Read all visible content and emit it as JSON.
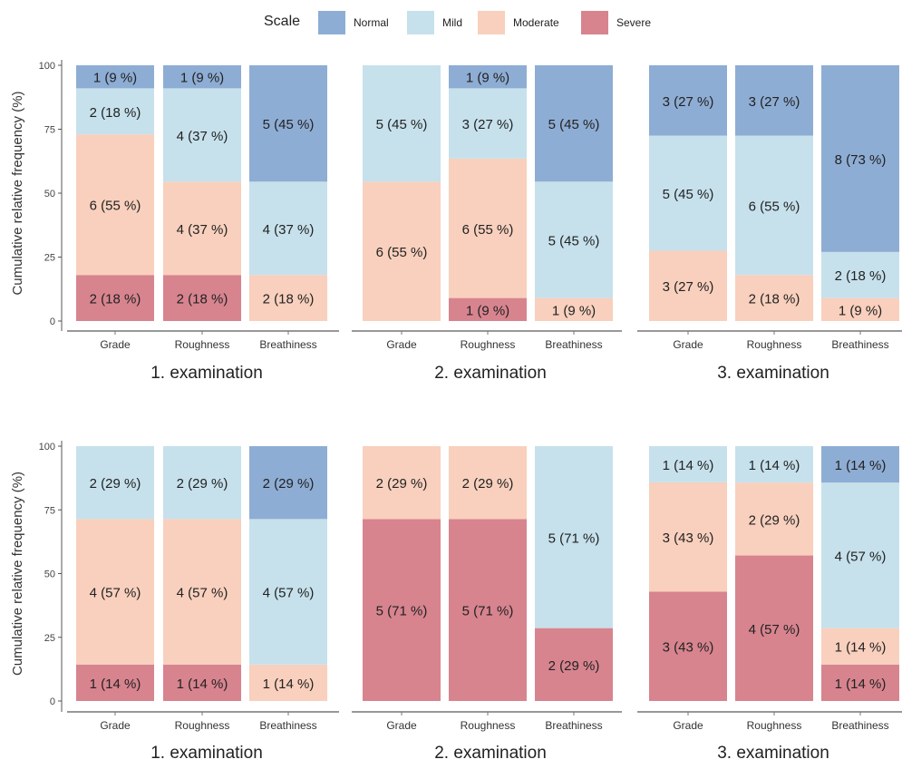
{
  "legend": {
    "title": "Scale",
    "items": [
      {
        "label": "Normal",
        "color": "#8eadd4"
      },
      {
        "label": "Mild",
        "color": "#c6e1ec"
      },
      {
        "label": "Moderate",
        "color": "#f8d0bd"
      },
      {
        "label": "Severe",
        "color": "#d7848f"
      }
    ]
  },
  "chart_data": {
    "type": "bar",
    "stacked": true,
    "ylabel": "Cumulative relative frequency (%)",
    "ylim": [
      0,
      100
    ],
    "yticks": [
      0,
      25,
      50,
      75,
      100
    ],
    "categories": [
      "Grade",
      "Roughness",
      "Breathiness"
    ],
    "stack_order_bottom_to_top": [
      "Severe",
      "Moderate",
      "Mild",
      "Normal"
    ],
    "rows": [
      {
        "panels": [
          {
            "title": "1. examination",
            "bars": [
              {
                "category": "Grade",
                "segments": [
                  {
                    "level": "Severe",
                    "value": 18,
                    "label": "2 (18 %)"
                  },
                  {
                    "level": "Moderate",
                    "value": 55,
                    "label": "6 (55 %)"
                  },
                  {
                    "level": "Mild",
                    "value": 18,
                    "label": "2 (18 %)"
                  },
                  {
                    "level": "Normal",
                    "value": 9,
                    "label": "1 (9 %)"
                  }
                ]
              },
              {
                "category": "Roughness",
                "segments": [
                  {
                    "level": "Severe",
                    "value": 18,
                    "label": "2 (18 %)"
                  },
                  {
                    "level": "Moderate",
                    "value": 36.5,
                    "label": "4 (37 %)"
                  },
                  {
                    "level": "Mild",
                    "value": 36.5,
                    "label": "4 (37 %)"
                  },
                  {
                    "level": "Normal",
                    "value": 9,
                    "label": "1 (9 %)"
                  }
                ]
              },
              {
                "category": "Breathiness",
                "segments": [
                  {
                    "level": "Moderate",
                    "value": 18,
                    "label": "2 (18 %)"
                  },
                  {
                    "level": "Mild",
                    "value": 36.5,
                    "label": "4 (37 %)"
                  },
                  {
                    "level": "Normal",
                    "value": 45.5,
                    "label": "5 (45 %)"
                  }
                ]
              }
            ]
          },
          {
            "title": "2. examination",
            "bars": [
              {
                "category": "Grade",
                "segments": [
                  {
                    "level": "Moderate",
                    "value": 54.5,
                    "label": "6 (55 %)"
                  },
                  {
                    "level": "Mild",
                    "value": 45.5,
                    "label": "5 (45 %)"
                  }
                ]
              },
              {
                "category": "Roughness",
                "segments": [
                  {
                    "level": "Severe",
                    "value": 9,
                    "label": "1 (9 %)"
                  },
                  {
                    "level": "Moderate",
                    "value": 54.5,
                    "label": "6 (55 %)"
                  },
                  {
                    "level": "Mild",
                    "value": 27.5,
                    "label": "3 (27 %)"
                  },
                  {
                    "level": "Normal",
                    "value": 9,
                    "label": "1 (9 %)"
                  }
                ]
              },
              {
                "category": "Breathiness",
                "segments": [
                  {
                    "level": "Moderate",
                    "value": 9,
                    "label": "1 (9 %)"
                  },
                  {
                    "level": "Mild",
                    "value": 45.5,
                    "label": "5 (45 %)"
                  },
                  {
                    "level": "Normal",
                    "value": 45.5,
                    "label": "5 (45 %)"
                  }
                ]
              }
            ]
          },
          {
            "title": "3. examination",
            "bars": [
              {
                "category": "Grade",
                "segments": [
                  {
                    "level": "Moderate",
                    "value": 27.5,
                    "label": "3 (27 %)"
                  },
                  {
                    "level": "Mild",
                    "value": 45,
                    "label": "5 (45 %)"
                  },
                  {
                    "level": "Normal",
                    "value": 27.5,
                    "label": "3 (27 %)"
                  }
                ]
              },
              {
                "category": "Roughness",
                "segments": [
                  {
                    "level": "Moderate",
                    "value": 18,
                    "label": "2 (18 %)"
                  },
                  {
                    "level": "Mild",
                    "value": 54.5,
                    "label": "6 (55 %)"
                  },
                  {
                    "level": "Normal",
                    "value": 27.5,
                    "label": "3 (27 %)"
                  }
                ]
              },
              {
                "category": "Breathiness",
                "segments": [
                  {
                    "level": "Moderate",
                    "value": 9,
                    "label": "1 (9 %)"
                  },
                  {
                    "level": "Mild",
                    "value": 18,
                    "label": "2 (18 %)"
                  },
                  {
                    "level": "Normal",
                    "value": 73,
                    "label": "8 (73 %)"
                  }
                ]
              }
            ]
          }
        ]
      },
      {
        "panels": [
          {
            "title": "1. examination",
            "bars": [
              {
                "category": "Grade",
                "segments": [
                  {
                    "level": "Severe",
                    "value": 14.3,
                    "label": "1 (14 %)"
                  },
                  {
                    "level": "Moderate",
                    "value": 57.1,
                    "label": "4 (57 %)"
                  },
                  {
                    "level": "Mild",
                    "value": 28.6,
                    "label": "2 (29 %)"
                  }
                ]
              },
              {
                "category": "Roughness",
                "segments": [
                  {
                    "level": "Severe",
                    "value": 14.3,
                    "label": "1 (14 %)"
                  },
                  {
                    "level": "Moderate",
                    "value": 57.1,
                    "label": "4 (57 %)"
                  },
                  {
                    "level": "Mild",
                    "value": 28.6,
                    "label": "2 (29 %)"
                  }
                ]
              },
              {
                "category": "Breathiness",
                "segments": [
                  {
                    "level": "Moderate",
                    "value": 14.3,
                    "label": "1 (14 %)"
                  },
                  {
                    "level": "Mild",
                    "value": 57.1,
                    "label": "4 (57 %)"
                  },
                  {
                    "level": "Normal",
                    "value": 28.6,
                    "label": "2 (29 %)"
                  }
                ]
              }
            ]
          },
          {
            "title": "2. examination",
            "bars": [
              {
                "category": "Grade",
                "segments": [
                  {
                    "level": "Severe",
                    "value": 71.4,
                    "label": "5 (71 %)"
                  },
                  {
                    "level": "Moderate",
                    "value": 28.6,
                    "label": "2 (29 %)"
                  }
                ]
              },
              {
                "category": "Roughness",
                "segments": [
                  {
                    "level": "Severe",
                    "value": 71.4,
                    "label": "5 (71 %)"
                  },
                  {
                    "level": "Moderate",
                    "value": 28.6,
                    "label": "2 (29 %)"
                  }
                ]
              },
              {
                "category": "Breathiness",
                "segments": [
                  {
                    "level": "Severe",
                    "value": 28.6,
                    "label": "2 (29 %)"
                  },
                  {
                    "level": "Mild",
                    "value": 71.4,
                    "label": "5 (71 %)"
                  }
                ]
              }
            ]
          },
          {
            "title": "3. examination",
            "bars": [
              {
                "category": "Grade",
                "segments": [
                  {
                    "level": "Severe",
                    "value": 42.9,
                    "label": "3 (43 %)"
                  },
                  {
                    "level": "Moderate",
                    "value": 42.9,
                    "label": "3 (43 %)"
                  },
                  {
                    "level": "Mild",
                    "value": 14.2,
                    "label": "1 (14 %)"
                  }
                ]
              },
              {
                "category": "Roughness",
                "segments": [
                  {
                    "level": "Severe",
                    "value": 57.1,
                    "label": "4 (57 %)"
                  },
                  {
                    "level": "Moderate",
                    "value": 28.6,
                    "label": "2 (29 %)"
                  },
                  {
                    "level": "Mild",
                    "value": 14.3,
                    "label": "1 (14 %)"
                  }
                ]
              },
              {
                "category": "Breathiness",
                "segments": [
                  {
                    "level": "Severe",
                    "value": 14.3,
                    "label": "1 (14 %)"
                  },
                  {
                    "level": "Moderate",
                    "value": 14.3,
                    "label": "1 (14 %)"
                  },
                  {
                    "level": "Mild",
                    "value": 57.1,
                    "label": "4 (57 %)"
                  },
                  {
                    "level": "Normal",
                    "value": 14.3,
                    "label": "1 (14 %)"
                  }
                ]
              }
            ]
          }
        ]
      }
    ]
  }
}
